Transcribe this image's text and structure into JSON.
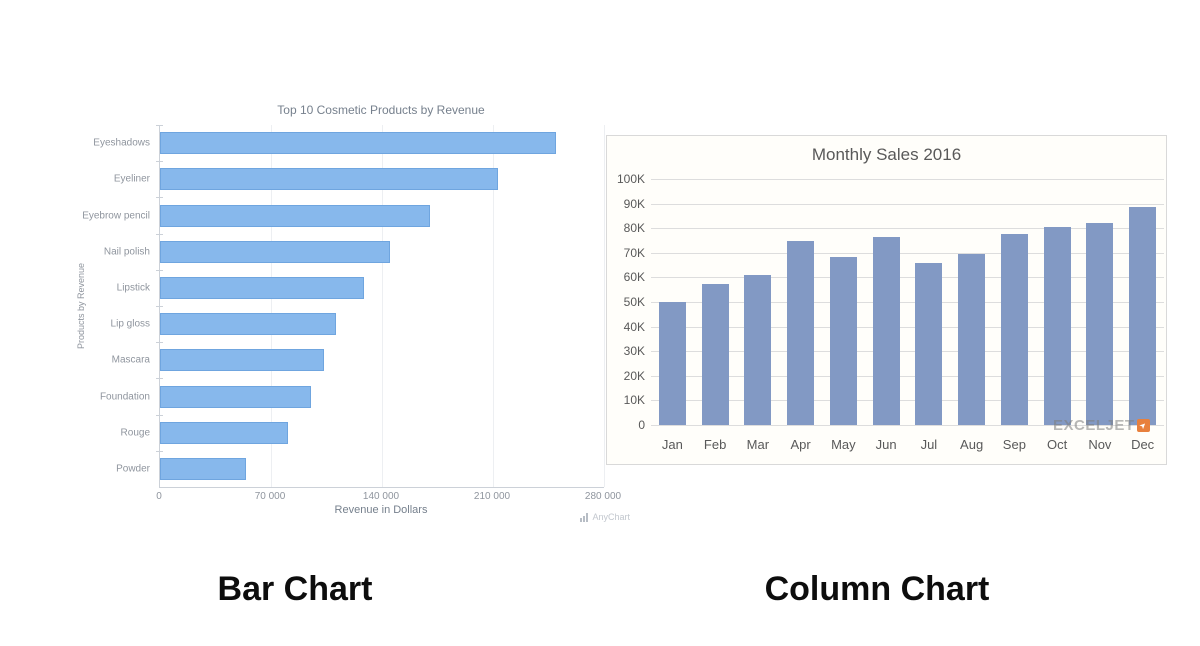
{
  "chart_data": [
    {
      "type": "bar",
      "orientation": "horizontal",
      "title": "Top 10 Cosmetic Products by Revenue",
      "categories": [
        "Eyeshadows",
        "Eyeliner",
        "Eyebrow pencil",
        "Nail polish",
        "Lipstick",
        "Lip gloss",
        "Mascara",
        "Foundation",
        "Rouge",
        "Powder"
      ],
      "values": [
        250000,
        213000,
        170500,
        145000,
        128500,
        111000,
        103500,
        95000,
        81000,
        54000
      ],
      "xlabel": "Revenue in Dollars",
      "ylabel": "Products by Revenue",
      "xlim": [
        0,
        280000
      ],
      "x_tick_labels": [
        "0",
        "70 000",
        "140 000",
        "210 000",
        "280 000"
      ],
      "grid": "vertical, light gray",
      "legend": "none",
      "bar_color": "#87b8ec",
      "watermark": "AnyChart",
      "caption": "Bar Chart"
    },
    {
      "type": "bar",
      "orientation": "vertical",
      "title": "Monthly Sales 2016",
      "categories": [
        "Jan",
        "Feb",
        "Mar",
        "Apr",
        "May",
        "Jun",
        "Jul",
        "Aug",
        "Sep",
        "Oct",
        "Nov",
        "Dec"
      ],
      "values": [
        50000,
        57500,
        61000,
        75000,
        68500,
        76500,
        66000,
        69500,
        77500,
        80500,
        82000,
        88500
      ],
      "xlabel": "",
      "ylabel": "",
      "ylim": [
        0,
        100000
      ],
      "y_tick_labels": [
        "0",
        "10K",
        "20K",
        "30K",
        "40K",
        "50K",
        "60K",
        "70K",
        "80K",
        "90K",
        "100K"
      ],
      "grid": "horizontal, light gray",
      "legend": "none",
      "bar_color": "#8299c4",
      "watermark": "EXCELJET",
      "caption": "Column Chart"
    }
  ]
}
